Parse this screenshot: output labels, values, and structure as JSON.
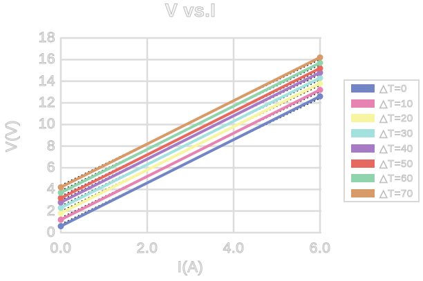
{
  "chart_data": {
    "type": "line",
    "title": "V vs.I",
    "xlabel": "I(A)",
    "ylabel": "V(V)",
    "x": [
      0.0,
      6.0
    ],
    "xlim": [
      0,
      6
    ],
    "ylim": [
      0,
      18
    ],
    "x_tick_values": [
      0,
      2,
      4,
      6
    ],
    "x_tick_labels": [
      "0.0",
      "2.0",
      "4.0",
      "6.0"
    ],
    "y_tick_values": [
      0,
      2,
      4,
      6,
      8,
      10,
      12,
      14,
      16,
      18
    ],
    "y_tick_labels": [
      "0",
      "2",
      "4",
      "6",
      "8",
      "10",
      "12",
      "14",
      "16",
      "18"
    ],
    "grid": true,
    "legend_position": "right-outside",
    "series": [
      {
        "name": "△T=0",
        "color": "#7285c4",
        "values": [
          0.6,
          12.6
        ]
      },
      {
        "name": "△T=10",
        "color": "#e783b3",
        "values": [
          1.2,
          13.2
        ]
      },
      {
        "name": "△T=20",
        "color": "#f8f5a0",
        "values": [
          1.8,
          13.8
        ]
      },
      {
        "name": "△T=30",
        "color": "#a3e1de",
        "values": [
          2.3,
          14.3
        ]
      },
      {
        "name": "△T=40",
        "color": "#a67ac5",
        "values": [
          2.8,
          14.8
        ]
      },
      {
        "name": "△T=50",
        "color": "#e5695f",
        "values": [
          3.2,
          15.2
        ]
      },
      {
        "name": "△T=60",
        "color": "#90d4ad",
        "values": [
          3.7,
          15.7
        ]
      },
      {
        "name": "△T=70",
        "color": "#d89a68",
        "values": [
          4.2,
          16.2
        ]
      }
    ],
    "trendlines": {
      "present": true,
      "style": "dotted",
      "color": "#1b1b1b",
      "per_series": true
    }
  },
  "colors": {
    "background": "#ffffff",
    "gridline": "#dcdcdc",
    "text_outline": "#bdbdbd",
    "legend_border": "#d9d9d9"
  }
}
